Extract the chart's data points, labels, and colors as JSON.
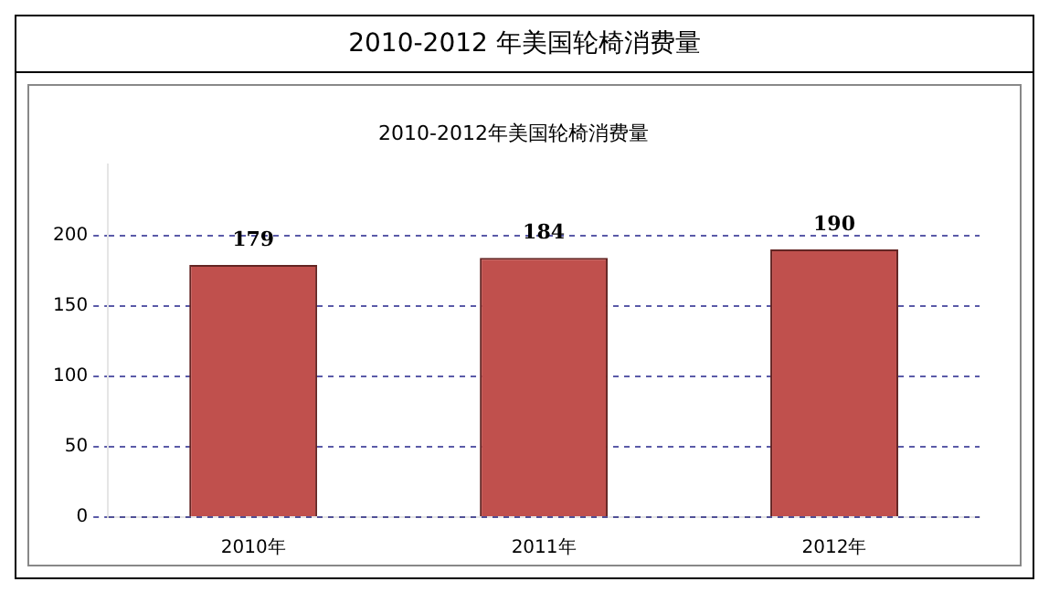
{
  "chart_data": {
    "type": "bar",
    "title": "2010-2012 年美国轮椅消费量",
    "subtitle": "2010-2012年美国轮椅消费量",
    "categories": [
      "2010年",
      "2011年",
      "2012年"
    ],
    "values": [
      179,
      184,
      190
    ],
    "color": "#c0504d",
    "ylim": [
      0,
      250
    ],
    "yticks": [
      0,
      50,
      100,
      150,
      200
    ],
    "grid": "y",
    "data_labels": true
  }
}
